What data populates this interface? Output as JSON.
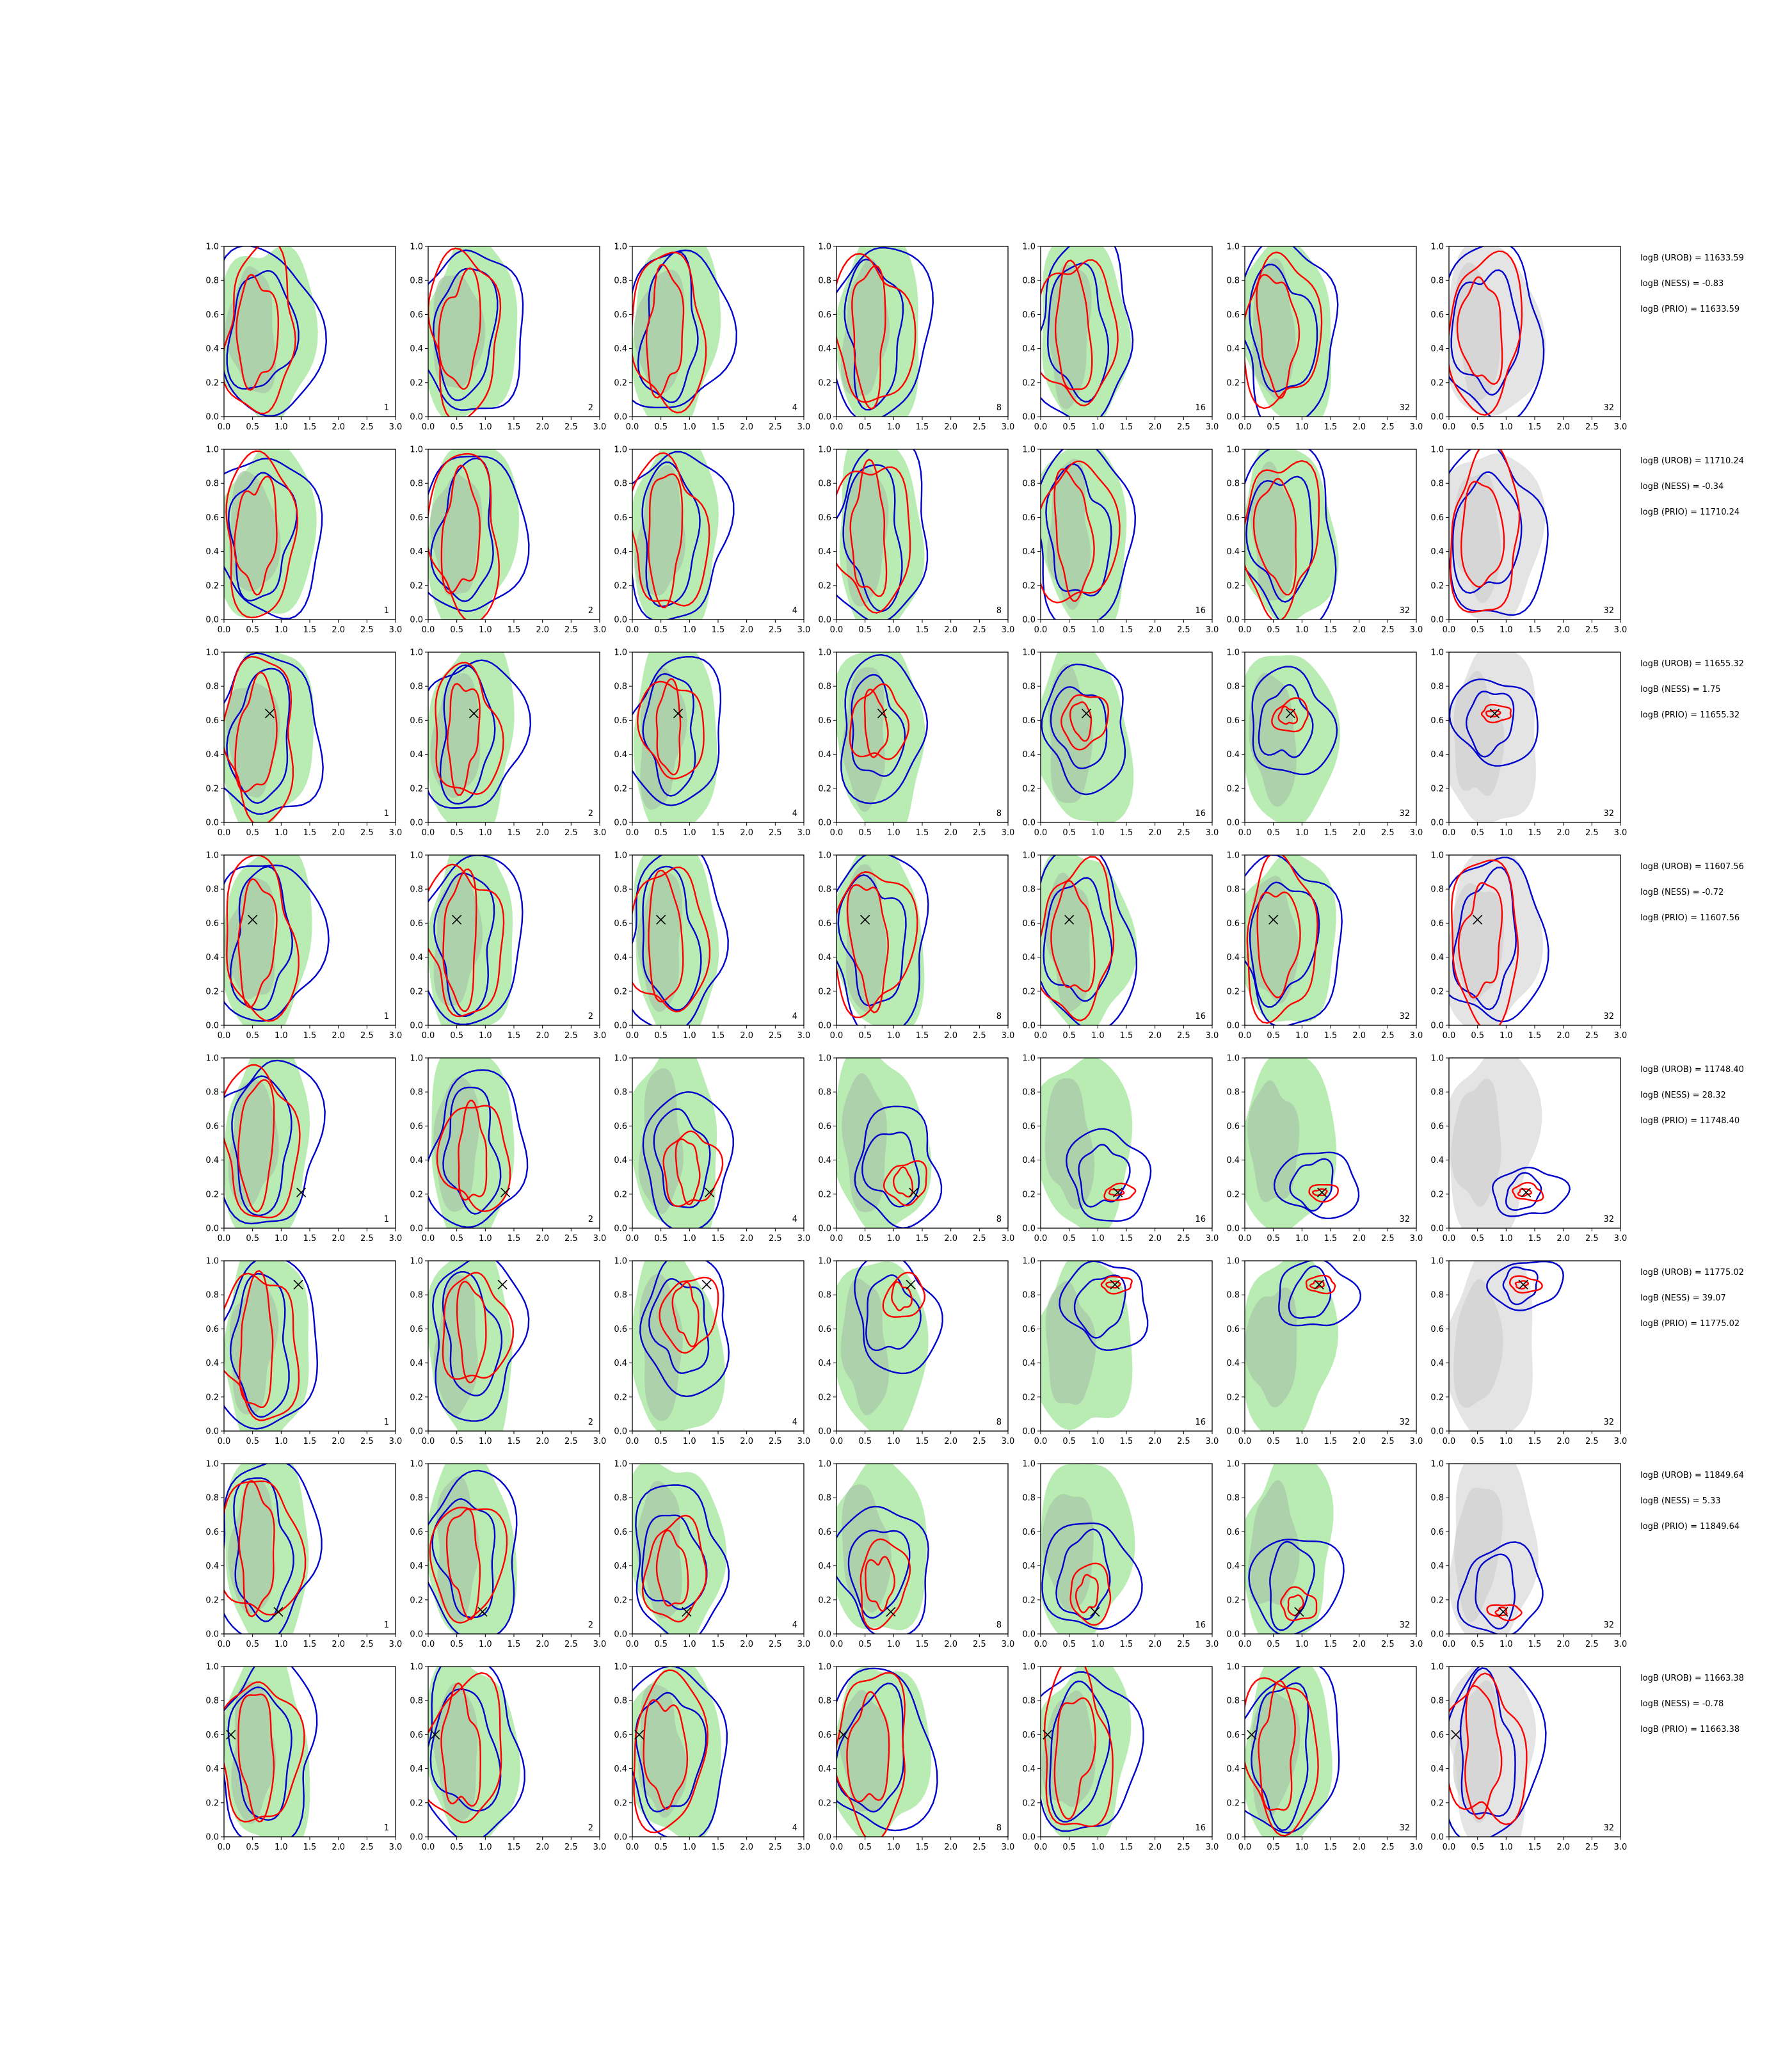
{
  "figure": {
    "title": "",
    "xlim": [
      0,
      3
    ],
    "ylim": [
      0,
      1
    ],
    "x_ticks": [
      "0.0",
      "0.5",
      "1.0",
      "1.5",
      "2.0",
      "2.5",
      "3.0"
    ],
    "y_ticks": [
      "0.0",
      "0.2",
      "0.4",
      "0.6",
      "0.8",
      "1.0"
    ],
    "columns": [
      {
        "label": "1",
        "background": "green"
      },
      {
        "label": "2",
        "background": "green"
      },
      {
        "label": "4",
        "background": "green"
      },
      {
        "label": "8",
        "background": "green"
      },
      {
        "label": "16",
        "background": "green"
      },
      {
        "label": "32",
        "background": "green"
      },
      {
        "label": "32",
        "background": "gray"
      }
    ],
    "colors": {
      "fill_green": "#b9ecb3",
      "fill_green_core": "#a9c9a8",
      "fill_gray": "#e4e4e4",
      "fill_gray_core": "#d2d2d2",
      "contour_red": "#ff0000",
      "contour_blue": "#0000cc",
      "marker": "#000000"
    }
  },
  "chart_data": [
    {
      "type": "contour",
      "row": 1,
      "marker": null,
      "mode": "broad",
      "bayes_factors": {
        "urob": "logB (UROB) = 11633.59",
        "ness": "logB (NESS) = -0.83",
        "prio": "logB (PRIO) = 11633.59"
      }
    },
    {
      "type": "contour",
      "row": 2,
      "marker": null,
      "mode": "broad",
      "bayes_factors": {
        "urob": "logB (UROB) = 11710.24",
        "ness": "logB (NESS) = -0.34",
        "prio": "logB (PRIO) = 11710.24"
      }
    },
    {
      "type": "contour",
      "row": 3,
      "marker": {
        "x": 0.8,
        "y": 0.64
      },
      "mode": "moderate",
      "bayes_factors": {
        "urob": "logB (UROB) = 11655.32",
        "ness": "logB (NESS) = 1.75",
        "prio": "logB (PRIO) = 11655.32"
      }
    },
    {
      "type": "contour",
      "row": 4,
      "marker": {
        "x": 0.5,
        "y": 0.62
      },
      "mode": "broad",
      "bayes_factors": {
        "urob": "logB (UROB) = 11607.56",
        "ness": "logB (NESS) = -0.72",
        "prio": "logB (PRIO) = 11607.56"
      }
    },
    {
      "type": "contour",
      "row": 5,
      "marker": {
        "x": 1.35,
        "y": 0.21
      },
      "mode": "sharp",
      "bayes_factors": {
        "urob": "logB (UROB) = 11748.40",
        "ness": "logB (NESS) = 28.32",
        "prio": "logB (PRIO) = 11748.40"
      }
    },
    {
      "type": "contour",
      "row": 6,
      "marker": {
        "x": 1.3,
        "y": 0.86
      },
      "mode": "sharp",
      "bayes_factors": {
        "urob": "logB (UROB) = 11775.02",
        "ness": "logB (NESS) = 39.07",
        "prio": "logB (PRIO) = 11775.02"
      }
    },
    {
      "type": "contour",
      "row": 7,
      "marker": {
        "x": 0.95,
        "y": 0.13
      },
      "mode": "moderate",
      "bayes_factors": {
        "urob": "logB (UROB) = 11849.64",
        "ness": "logB (NESS) = 5.33",
        "prio": "logB (PRIO) = 11849.64"
      }
    },
    {
      "type": "contour",
      "row": 8,
      "marker": {
        "x": 0.12,
        "y": 0.6
      },
      "mode": "broad",
      "bayes_factors": {
        "urob": "logB (UROB) = 11663.38",
        "ness": "logB (NESS) = -0.78",
        "prio": "logB (PRIO) = 11663.38"
      }
    }
  ]
}
